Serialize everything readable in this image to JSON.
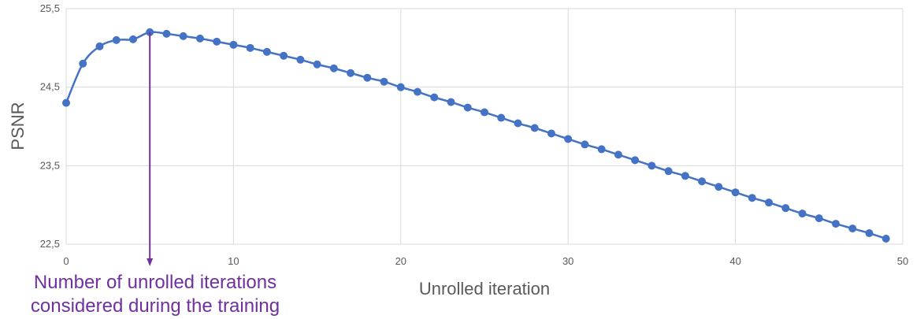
{
  "chart_data": {
    "type": "line",
    "title": "",
    "xlabel": "Unrolled iteration",
    "ylabel": "PSNR",
    "xlim": [
      0,
      50
    ],
    "ylim": [
      22.5,
      25.5
    ],
    "x_ticks": [
      "0",
      "10",
      "20",
      "30",
      "40",
      "50"
    ],
    "y_ticks": [
      "22,5",
      "23,5",
      "24,5",
      "25,5"
    ],
    "grid": true,
    "series": [
      {
        "color": "#4472C4",
        "x": [
          0,
          1,
          2,
          3,
          4,
          5,
          6,
          7,
          8,
          9,
          10,
          11,
          12,
          13,
          14,
          15,
          16,
          17,
          18,
          19,
          20,
          21,
          22,
          23,
          24,
          25,
          26,
          27,
          28,
          29,
          30,
          31,
          32,
          33,
          34,
          35,
          36,
          37,
          38,
          39,
          40,
          41,
          42,
          43,
          44,
          45,
          46,
          47,
          48,
          49
        ],
        "y": [
          24.3,
          24.8,
          25.02,
          25.1,
          25.11,
          25.2,
          25.18,
          25.15,
          25.12,
          25.08,
          25.04,
          25.0,
          24.95,
          24.9,
          24.85,
          24.79,
          24.74,
          24.68,
          24.62,
          24.57,
          24.5,
          24.44,
          24.37,
          24.31,
          24.24,
          24.18,
          24.11,
          24.04,
          23.98,
          23.91,
          23.84,
          23.77,
          23.71,
          23.64,
          23.57,
          23.5,
          23.43,
          23.37,
          23.3,
          23.23,
          23.16,
          23.09,
          23.03,
          22.96,
          22.89,
          22.83,
          22.76,
          22.7,
          22.64,
          22.57
        ]
      }
    ],
    "annotation": {
      "text_line1": "Number of unrolled iterations",
      "text_line2": "considered during the training",
      "x": 5,
      "color": "#7030A0"
    }
  }
}
